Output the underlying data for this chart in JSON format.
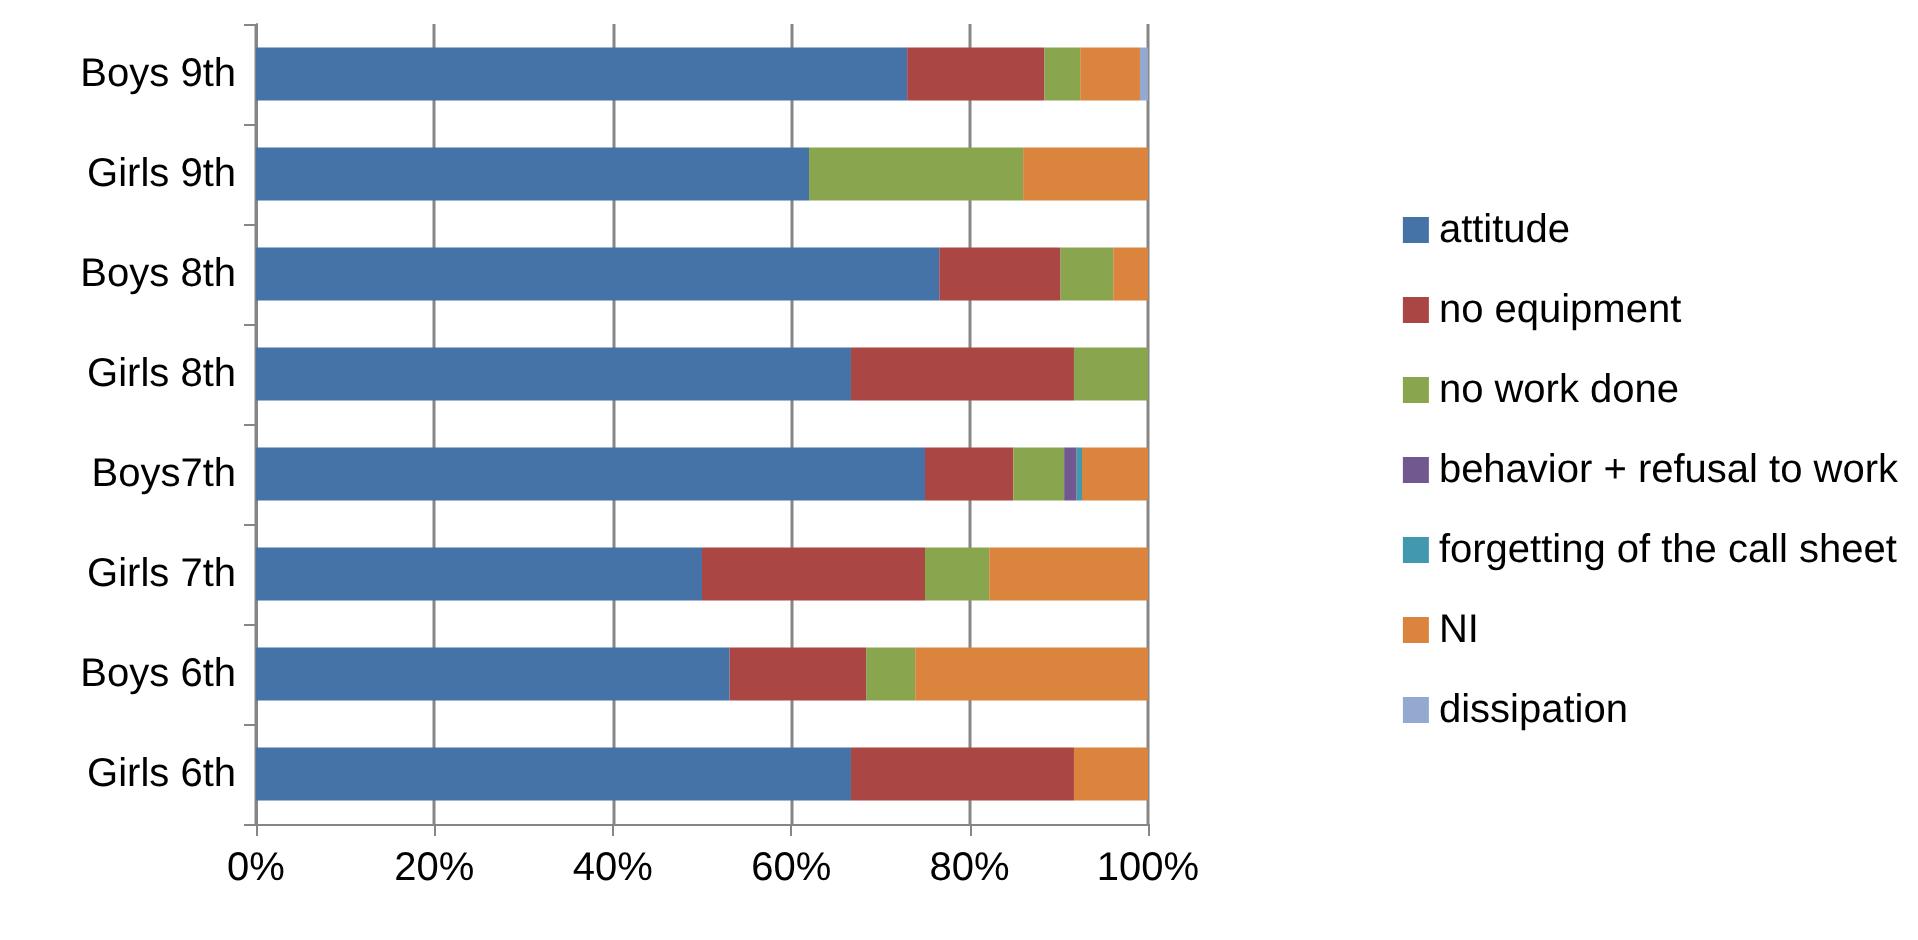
{
  "chart_data": {
    "type": "bar",
    "orientation": "horizontal",
    "stacked": true,
    "categories": [
      "Boys 9th",
      "Girls 9th",
      "Boys 8th",
      "Girls 8th",
      "Boys7th",
      "Girls 7th",
      "Boys 6th",
      "Girls 6th"
    ],
    "series": [
      {
        "name": "attitude",
        "color": "#4572a7",
        "values": [
          73,
          62,
          76.6,
          66.7,
          75,
          50,
          53.1,
          66.7
        ]
      },
      {
        "name": "no equipment",
        "color": "#aa4643",
        "values": [
          15.4,
          0,
          13.6,
          25,
          9.9,
          25,
          15.3,
          25
        ]
      },
      {
        "name": "no work done",
        "color": "#89a54e",
        "values": [
          4,
          24,
          5.9,
          8.3,
          5.7,
          7.2,
          5.5,
          0
        ]
      },
      {
        "name": "behavior + refusal to work",
        "color": "#71588f",
        "values": [
          0,
          0,
          0,
          0,
          1.4,
          0,
          0,
          0
        ]
      },
      {
        "name": "forgetting of the call sheet",
        "color": "#4198af",
        "values": [
          0,
          0,
          0,
          0,
          0.6,
          0,
          0,
          0
        ]
      },
      {
        "name": "NI",
        "color": "#db843d",
        "values": [
          6.7,
          14,
          3.9,
          0,
          7.4,
          17.8,
          26.1,
          8.3
        ]
      },
      {
        "name": "dissipation",
        "color": "#93a9cf",
        "values": [
          0.9,
          0,
          0,
          0,
          0,
          0,
          0,
          0
        ]
      }
    ],
    "xlim": [
      0,
      100
    ],
    "xticks": [
      {
        "value": 0,
        "label": "0%"
      },
      {
        "value": 20,
        "label": "20%"
      },
      {
        "value": 40,
        "label": "40%"
      },
      {
        "value": 60,
        "label": "60%"
      },
      {
        "value": 80,
        "label": "80%"
      },
      {
        "value": 100,
        "label": "100%"
      }
    ],
    "grid": "x",
    "legend": "right"
  }
}
